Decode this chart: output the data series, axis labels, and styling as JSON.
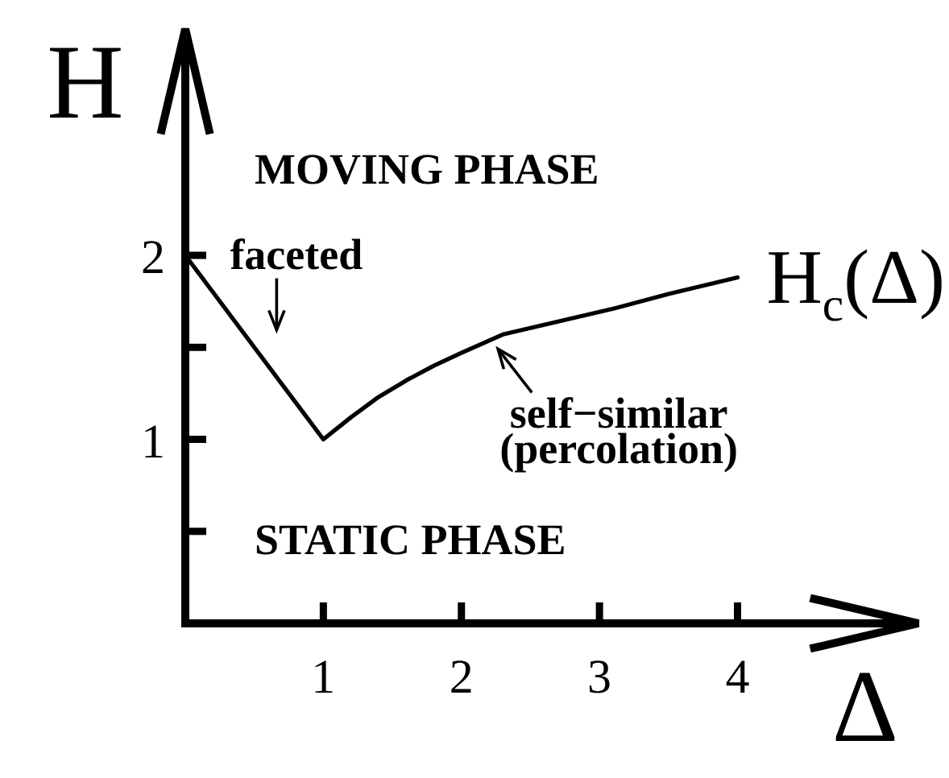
{
  "chart_data": {
    "type": "line",
    "xlabel": "Δ",
    "ylabel": "H",
    "x": [
      0,
      1,
      1.2,
      1.4,
      1.6,
      1.8,
      2,
      2.3,
      2.7,
      3.1,
      3.5,
      4
    ],
    "series": [
      {
        "name": "H$_{c}$(Δ)",
        "color": "#000000",
        "values": [
          2,
          1,
          1.12,
          1.23,
          1.32,
          1.4,
          1.47,
          1.57,
          1.64,
          1.71,
          1.79,
          1.88
        ]
      }
    ],
    "xlim": [
      0,
      5.31
    ],
    "ylim": [
      0,
      3.23
    ],
    "xticks": [
      1,
      2,
      3,
      4
    ],
    "yticks": [
      {
        "value": 0.5,
        "label": null
      },
      1,
      {
        "value": 1.5,
        "label": null
      },
      2
    ],
    "line_style": "solid",
    "annotations": [
      "MOVING PHASE",
      {
        "text": "faceted",
        "x": 0.65,
        "y": 1.35
      },
      {
        "text": "self−similar\n(percolation)",
        "x": 2.3,
        "y": 1.57
      },
      "STATIC PHASE"
    ]
  }
}
